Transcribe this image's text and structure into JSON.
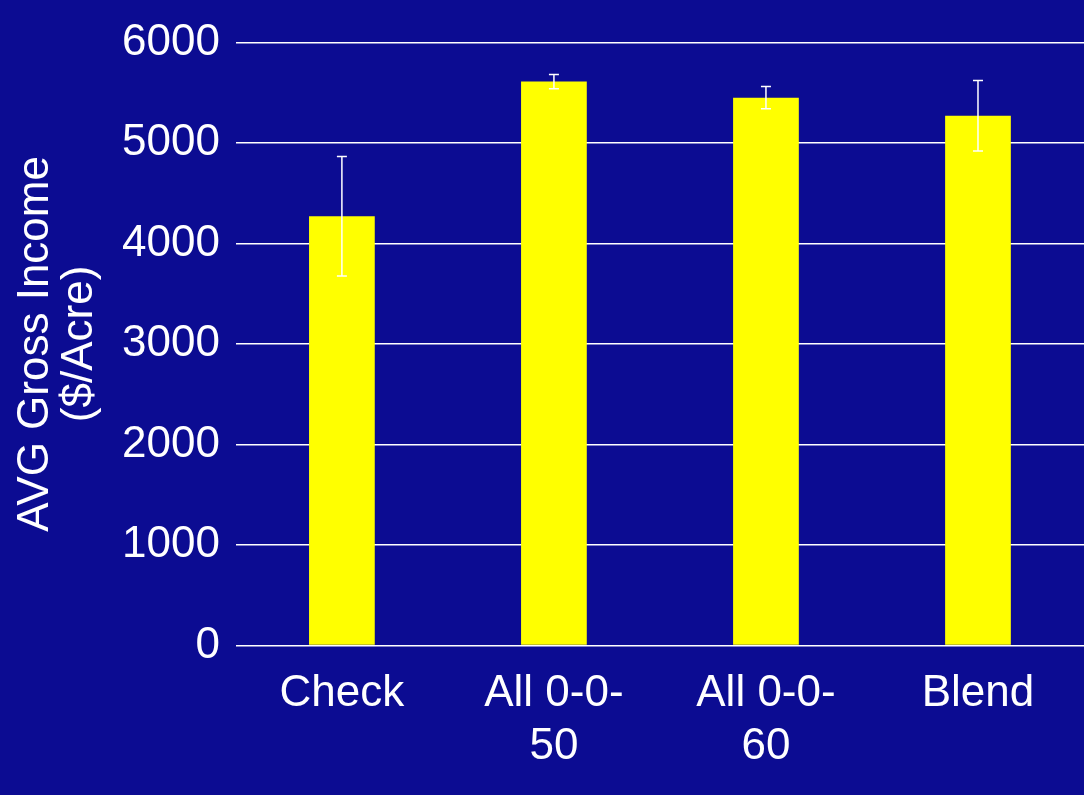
{
  "chart_data": {
    "type": "bar",
    "ylabel": "AVG Gross Income ($/Acre)",
    "categories": [
      "Check",
      "All 0-0-50",
      "All 0-0-60",
      "Blend"
    ],
    "values": [
      4270,
      5610,
      5450,
      5270
    ],
    "errors": [
      595,
      70,
      110,
      350
    ],
    "color": "#ffff00",
    "ylim": [
      0,
      6000
    ],
    "yticks": [
      0,
      1000,
      2000,
      3000,
      4000,
      5000,
      6000
    ],
    "grid": "y",
    "legend": false
  }
}
